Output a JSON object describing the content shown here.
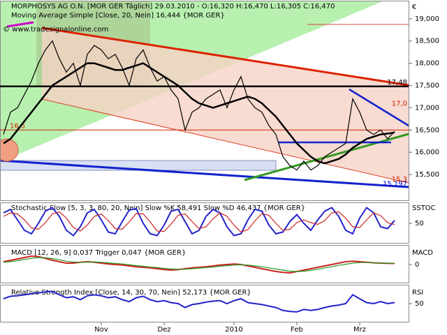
{
  "chart_data": [
    {
      "type": "line",
      "title": "MORPHOSYS AG O.N. [MOR GER  Täglich] 29.03.2010 - O:16,320 H:16,470 L:16,305 C:16,470",
      "subtitle": "Moving Average Simple [Close, 20, Nein] 16,444 {MOR GER}",
      "credit": "© www.tradesignalonline.com",
      "axis_label": "€",
      "categories": [
        null,
        null,
        null,
        null,
        null,
        null,
        null,
        null,
        null,
        null,
        null,
        null,
        null,
        null,
        "Nov",
        null,
        null,
        null,
        null,
        null,
        null,
        null,
        null,
        "Dez",
        null,
        null,
        null,
        null,
        null,
        null,
        null,
        null,
        null,
        "2010",
        null,
        null,
        null,
        null,
        null,
        null,
        null,
        null,
        "Feb",
        null,
        null,
        null,
        null,
        null,
        null,
        null,
        null,
        "Mrz",
        null,
        null,
        null,
        null,
        null
      ],
      "series": [
        {
          "name": "Close",
          "color": "#000000",
          "values": [
            16.4,
            16.9,
            17.0,
            17.3,
            17.6,
            18.0,
            18.3,
            18.5,
            18.1,
            17.8,
            18.0,
            17.5,
            18.2,
            18.4,
            18.3,
            18.1,
            18.2,
            17.9,
            17.5,
            18.1,
            18.3,
            17.9,
            17.6,
            17.7,
            17.4,
            17.2,
            16.5,
            16.9,
            17.0,
            17.2,
            17.3,
            17.4,
            17.0,
            17.4,
            17.7,
            17.2,
            17.0,
            16.9,
            16.6,
            16.4,
            15.9,
            15.7,
            15.6,
            15.8,
            15.6,
            15.7,
            15.9,
            16.0,
            16.1,
            16.2,
            17.2,
            16.9,
            16.5,
            16.4,
            16.5,
            16.3,
            16.47
          ]
        },
        {
          "name": "Moving Average",
          "color": "#000000",
          "values": [
            16.2,
            16.3,
            16.5,
            16.7,
            16.9,
            17.1,
            17.3,
            17.5,
            17.6,
            17.7,
            17.8,
            17.9,
            18.0,
            18.0,
            17.95,
            17.9,
            17.85,
            17.85,
            17.9,
            17.95,
            18.0,
            17.9,
            17.8,
            17.7,
            17.6,
            17.5,
            17.35,
            17.2,
            17.1,
            17.05,
            17.0,
            17.05,
            17.1,
            17.15,
            17.2,
            17.25,
            17.2,
            17.1,
            16.95,
            16.8,
            16.6,
            16.4,
            16.2,
            16.05,
            15.9,
            15.8,
            15.75,
            15.8,
            15.85,
            15.95,
            16.1,
            16.2,
            16.3,
            16.35,
            16.4,
            16.42,
            16.444
          ]
        }
      ],
      "levels": [
        {
          "value": 17.48,
          "label": "17,48",
          "color": "#000000",
          "hline": true,
          "position": "right"
        },
        {
          "value": 17.0,
          "label": "17,0",
          "color": "#cc2200",
          "hline": false,
          "position": "right"
        },
        {
          "value": 16.5,
          "label": "16,5",
          "color": "#cc2200",
          "hline": true,
          "position": "left"
        },
        {
          "value": 15.3,
          "label": "15,3",
          "color": "#cc2200",
          "hline": false,
          "position": "right"
        },
        {
          "value": 15.197,
          "label": "15,197",
          "color": "#0000cc",
          "hline": false,
          "position": "right"
        }
      ],
      "ylim": [
        14.92,
        19.39
      ],
      "yticks": [
        {
          "value": 19,
          "label": "19,000"
        },
        {
          "value": 18.5,
          "label": "18,500"
        },
        {
          "value": 18,
          "label": "18,000"
        },
        {
          "value": 17.5,
          "label": "17,500"
        },
        {
          "value": 17,
          "label": "17,000"
        },
        {
          "value": 16.5,
          "label": "16,500"
        },
        {
          "value": 16,
          "label": "16,000"
        },
        {
          "value": 15.5,
          "label": "15,500"
        }
      ]
    },
    {
      "type": "line",
      "title": "Stochastic Slow [5, 3, 3, 80, 20, Nein] Slow %K 58,491 Slow %D 46,437 {MOR GER}",
      "axis_label": "SSTOC",
      "series": [
        {
          "name": "Slow %K",
          "color": "#2222cc",
          "values": [
            80,
            90,
            60,
            30,
            20,
            50,
            85,
            95,
            70,
            30,
            15,
            40,
            80,
            90,
            60,
            25,
            20,
            55,
            88,
            92,
            50,
            20,
            15,
            45,
            85,
            90,
            55,
            20,
            30,
            70,
            90,
            80,
            40,
            15,
            20,
            60,
            90,
            85,
            45,
            20,
            25,
            55,
            75,
            50,
            30,
            60,
            85,
            95,
            70,
            30,
            20,
            65,
            95,
            80,
            40,
            35,
            58.491
          ]
        },
        {
          "name": "Slow %D",
          "color": "#cc2222",
          "values": [
            70,
            80,
            77,
            60,
            37,
            33,
            52,
            77,
            83,
            65,
            38,
            28,
            45,
            70,
            77,
            58,
            35,
            33,
            54,
            78,
            77,
            54,
            28,
            27,
            48,
            73,
            77,
            55,
            35,
            40,
            63,
            80,
            70,
            45,
            25,
            32,
            57,
            78,
            73,
            50,
            30,
            33,
            52,
            60,
            52,
            47,
            58,
            80,
            83,
            65,
            40,
            38,
            60,
            80,
            72,
            52,
            46.437
          ]
        }
      ],
      "ylim": [
        0,
        100
      ],
      "yticks": [
        50
      ]
    },
    {
      "type": "line",
      "title": "MACD [12, 26, 9] 0,037 Trigger 0,047 {MOR GER}",
      "axis_label": "MACD",
      "series": [
        {
          "name": "MACD",
          "color": "#cc2222",
          "values": [
            0.1,
            0.15,
            0.2,
            0.25,
            0.3,
            0.28,
            0.22,
            0.15,
            0.1,
            0.05,
            0.05,
            0.08,
            0.1,
            0.08,
            0.05,
            0.02,
            0.0,
            -0.02,
            -0.05,
            -0.08,
            -0.1,
            -0.12,
            -0.15,
            -0.18,
            -0.2,
            -0.18,
            -0.15,
            -0.12,
            -0.1,
            -0.08,
            -0.05,
            -0.02,
            0.0,
            0.02,
            0.0,
            -0.05,
            -0.1,
            -0.15,
            -0.2,
            -0.25,
            -0.28,
            -0.3,
            -0.25,
            -0.2,
            -0.15,
            -0.1,
            -0.05,
            0.0,
            0.05,
            0.1,
            0.12,
            0.1,
            0.08,
            0.06,
            0.05,
            0.04,
            0.037
          ]
        },
        {
          "name": "Trigger",
          "color": "#229922",
          "values": [
            0.08,
            0.1,
            0.14,
            0.18,
            0.22,
            0.25,
            0.24,
            0.21,
            0.17,
            0.12,
            0.09,
            0.08,
            0.08,
            0.09,
            0.08,
            0.06,
            0.04,
            0.02,
            -0.01,
            -0.04,
            -0.06,
            -0.09,
            -0.11,
            -0.14,
            -0.16,
            -0.17,
            -0.17,
            -0.15,
            -0.13,
            -0.11,
            -0.09,
            -0.06,
            -0.04,
            -0.02,
            -0.01,
            -0.02,
            -0.05,
            -0.08,
            -0.12,
            -0.16,
            -0.2,
            -0.24,
            -0.25,
            -0.24,
            -0.21,
            -0.17,
            -0.12,
            -0.08,
            -0.03,
            0.01,
            0.05,
            0.07,
            0.07,
            0.06,
            0.05,
            0.05,
            0.047
          ]
        }
      ],
      "ylim": [
        -0.6,
        0.6
      ],
      "yticks": [
        0
      ]
    },
    {
      "type": "line",
      "title": "Relative Strength Index [Close, 14, 30, 70, Nein] 52,173 {MOR GER}",
      "axis_label": "RSI",
      "series": [
        {
          "name": "RSI",
          "color": "#2222cc",
          "values": [
            60,
            65,
            66,
            68,
            70,
            72,
            74,
            75,
            68,
            62,
            64,
            58,
            66,
            68,
            66,
            62,
            64,
            58,
            54,
            62,
            65,
            58,
            54,
            56,
            52,
            50,
            42,
            48,
            50,
            53,
            55,
            56,
            50,
            56,
            60,
            52,
            50,
            48,
            45,
            42,
            36,
            34,
            33,
            38,
            36,
            38,
            42,
            45,
            47,
            50,
            68,
            60,
            52,
            50,
            54,
            50,
            52.173
          ]
        }
      ],
      "ylim": [
        0,
        100
      ],
      "yticks": [
        50
      ]
    }
  ]
}
